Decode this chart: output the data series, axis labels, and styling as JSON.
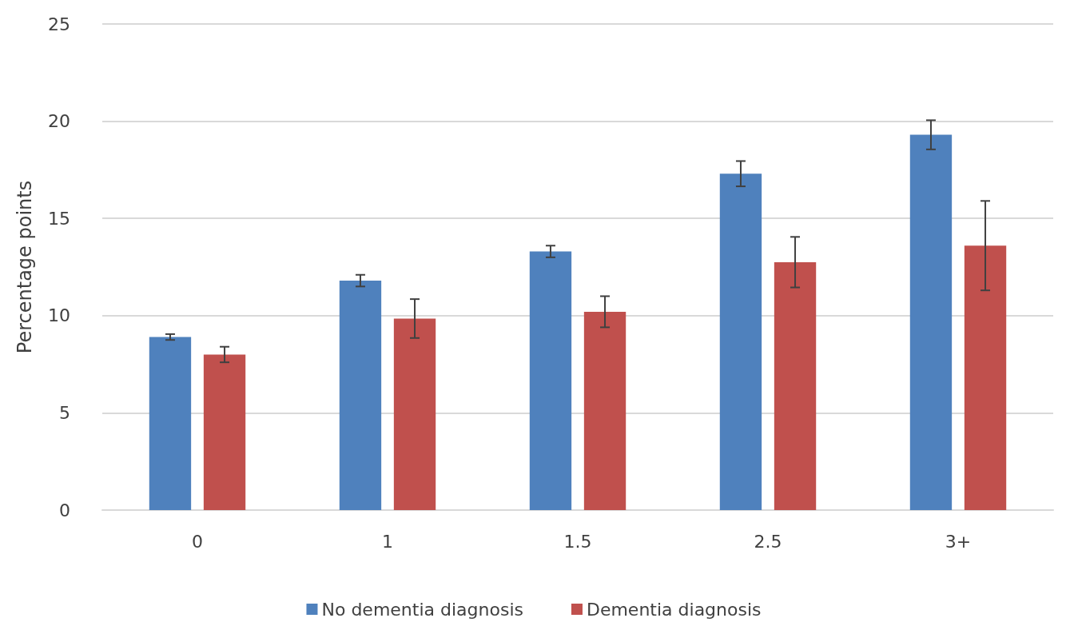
{
  "chart_data": {
    "type": "bar",
    "ylabel": "Percentage points",
    "categories": [
      "0",
      "1",
      "1.5",
      "2.5",
      "3+"
    ],
    "series": [
      {
        "name": "No dementia diagnosis",
        "color": "#4f81bd",
        "values": [
          8.9,
          11.8,
          13.3,
          17.3,
          19.3
        ],
        "errors": [
          0.15,
          0.3,
          0.3,
          0.65,
          0.75
        ]
      },
      {
        "name": "Dementia diagnosis",
        "color": "#c0504d",
        "values": [
          8.0,
          9.85,
          10.2,
          12.75,
          13.6
        ],
        "errors": [
          0.4,
          1.0,
          0.8,
          1.3,
          2.3
        ]
      }
    ],
    "ylim": [
      0,
      25
    ],
    "yticks": [
      0,
      5,
      10,
      15,
      20,
      25
    ],
    "grid": "y",
    "legend": "bottom"
  }
}
